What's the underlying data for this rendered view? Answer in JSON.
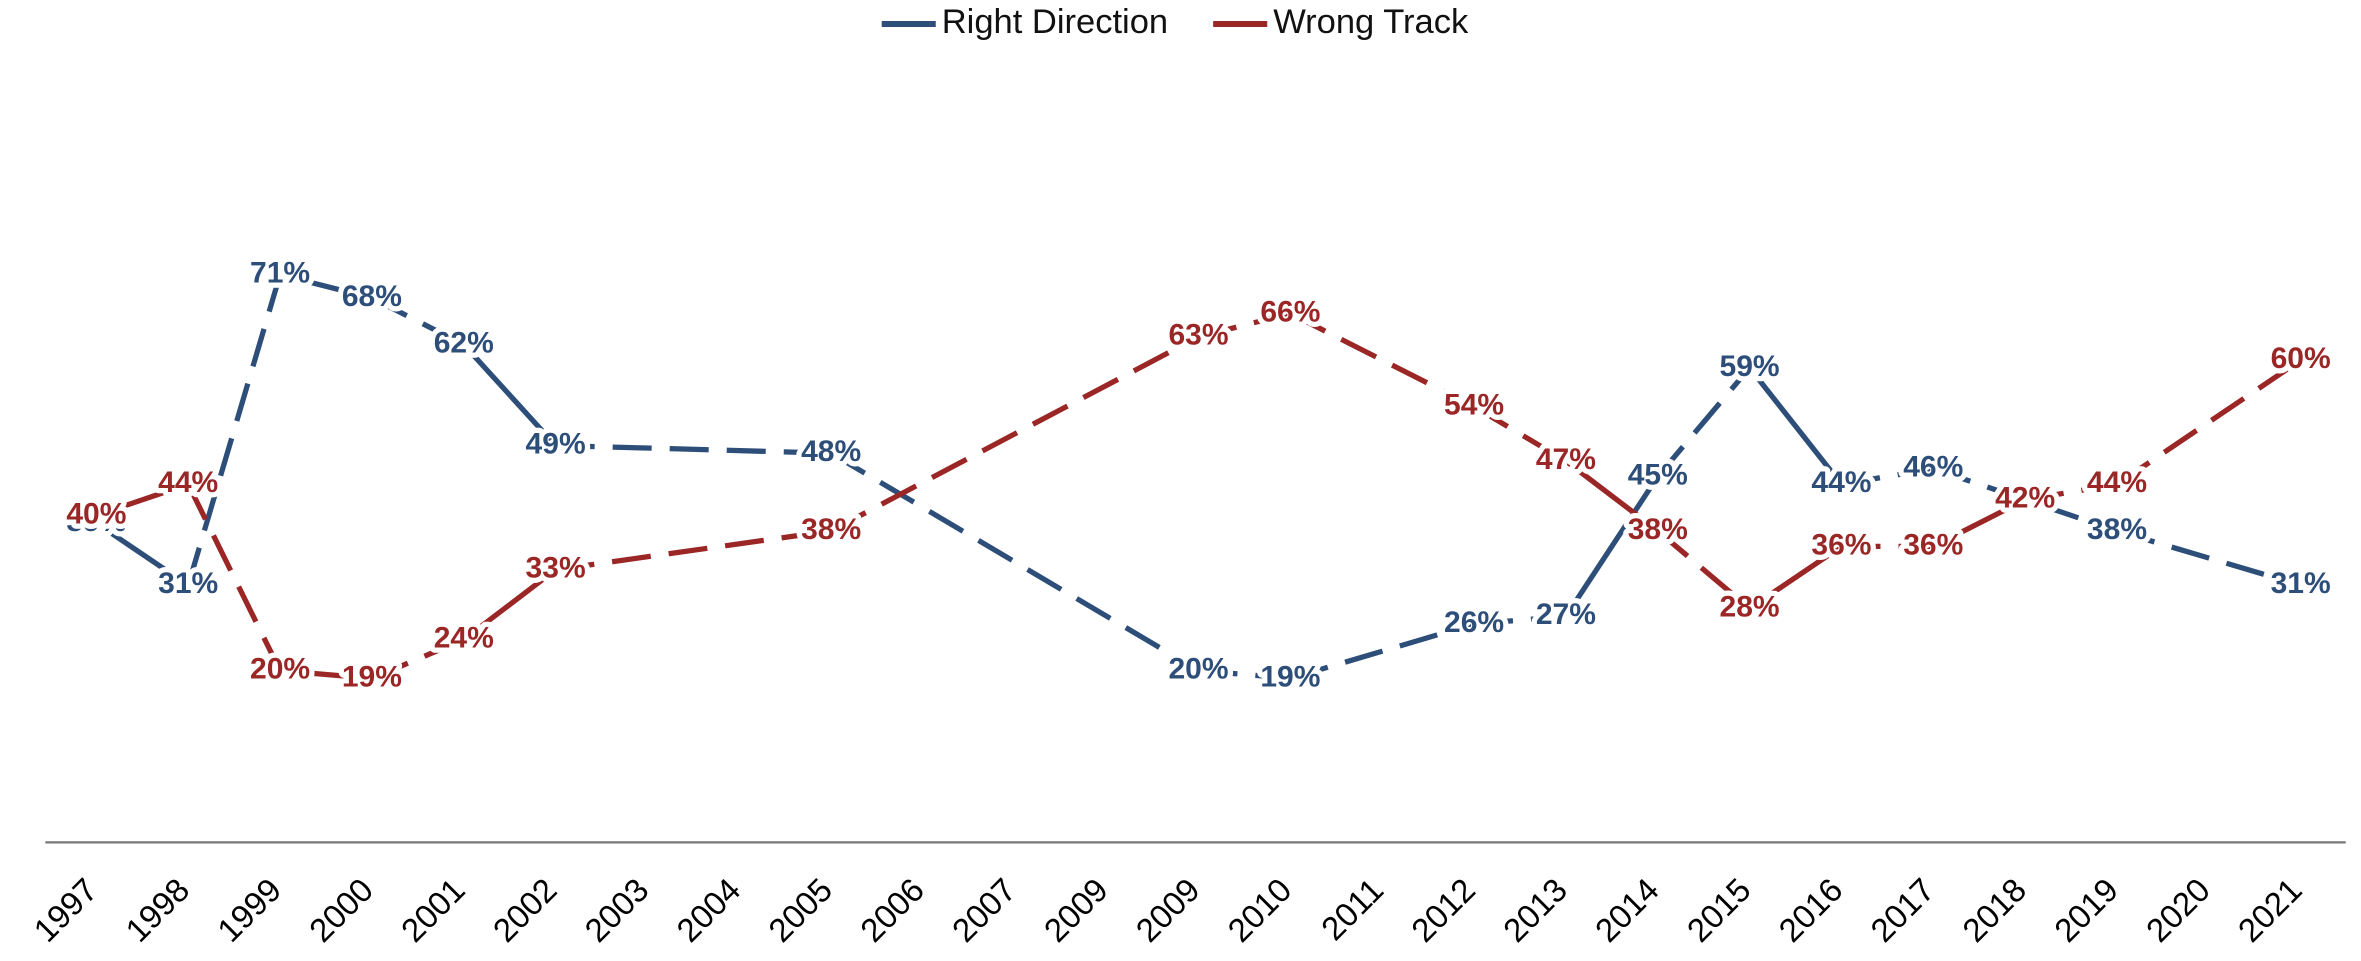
{
  "chart_data": {
    "type": "line",
    "categories": [
      "1997",
      "1998",
      "1999",
      "2000",
      "2001",
      "2002",
      "2003",
      "2004",
      "2005",
      "2006",
      "2007",
      "2009",
      "2009",
      "2010",
      "2011",
      "2012",
      "2013",
      "2014",
      "2015",
      "2016",
      "2017",
      "2018",
      "2019",
      "2020",
      "2021"
    ],
    "series": [
      {
        "name": "Right Direction",
        "color": "#2e4e7a",
        "values": [
          39,
          31,
          71,
          68,
          62,
          49,
          null,
          null,
          48,
          null,
          null,
          null,
          20,
          19,
          null,
          26,
          27,
          45,
          59,
          44,
          46,
          null,
          38,
          null,
          31
        ],
        "value_labels": [
          "39%",
          "31%",
          "71%",
          "68%",
          "62%",
          "49%",
          null,
          null,
          "48%",
          null,
          null,
          null,
          "20%",
          "19%",
          null,
          "26%",
          "27%",
          "45%",
          "59%",
          "44%",
          "46%",
          null,
          "38%",
          null,
          "31%"
        ]
      },
      {
        "name": "Wrong Track",
        "color": "#9b2626",
        "values": [
          40,
          44,
          20,
          19,
          24,
          33,
          null,
          null,
          38,
          null,
          null,
          null,
          63,
          66,
          null,
          54,
          47,
          38,
          28,
          36,
          36,
          42,
          44,
          null,
          60
        ],
        "value_labels": [
          "40%",
          "44%",
          "20%",
          "19%",
          "24%",
          "33%",
          null,
          null,
          "38%",
          null,
          null,
          null,
          "63%",
          "66%",
          null,
          "54%",
          "47%",
          "38%",
          "28%",
          "36%",
          "36%",
          "42%",
          "44%",
          null,
          "60%"
        ]
      }
    ],
    "ylim": [
      0,
      100
    ],
    "legend": "top"
  }
}
